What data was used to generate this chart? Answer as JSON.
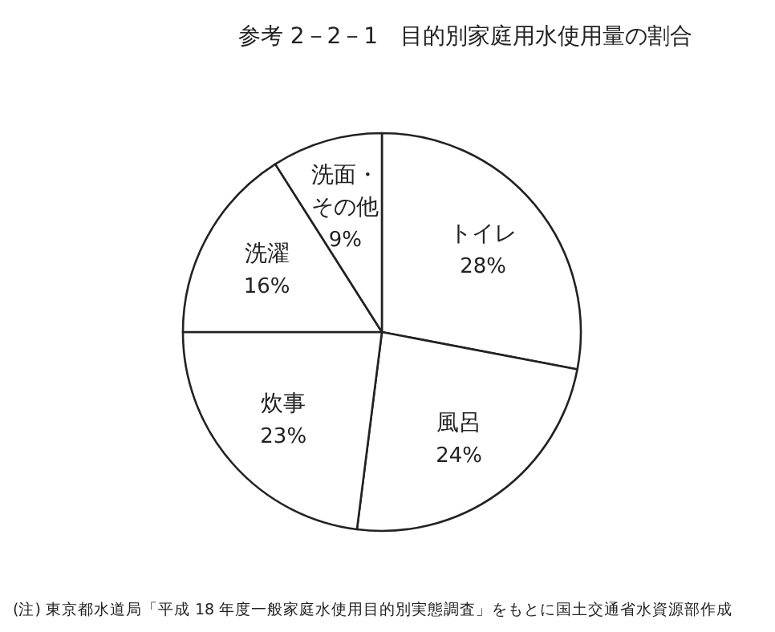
{
  "chart_data": {
    "type": "pie",
    "title": "参考 2－2－1　目的別家庭用水使用量の割合",
    "categories": [
      "トイレ",
      "風呂",
      "炊事",
      "洗濯",
      "洗面・その他"
    ],
    "values": [
      28,
      24,
      23,
      16,
      9
    ],
    "value_labels": [
      "28%",
      "24%",
      "23%",
      "16%",
      "9%"
    ],
    "colors": [
      "#ffffff",
      "#ffffff",
      "#ffffff",
      "#ffffff",
      "#ffffff"
    ],
    "annotations": [
      "(注) 東京都水道局「平成 18 年度一般家庭水使用目的別実態調査」をもとに国土交通省水資源部作成"
    ]
  }
}
